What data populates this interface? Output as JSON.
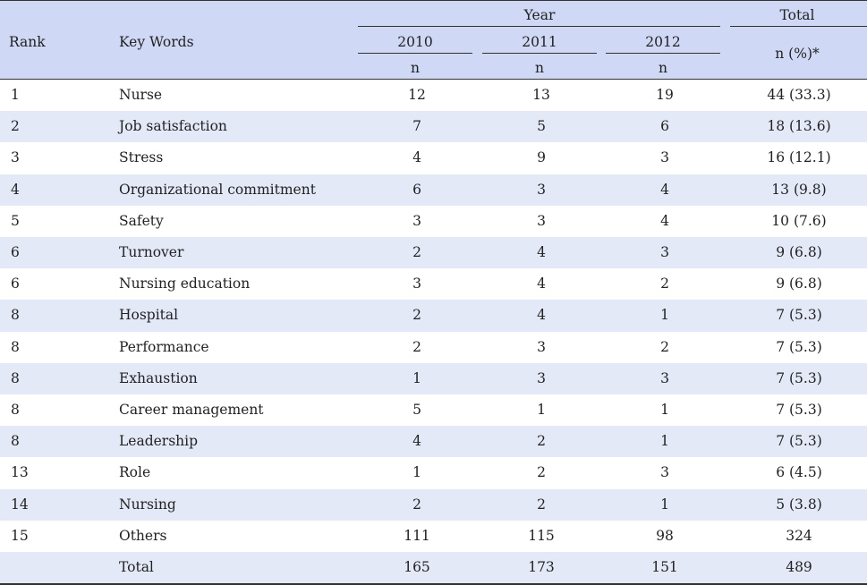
{
  "header": {
    "rank": "Rank",
    "keywords": "Key Words",
    "year": "Year",
    "total": "Total",
    "years": [
      "2010",
      "2011",
      "2012"
    ],
    "n": "n",
    "total_sub": "n (%)*"
  },
  "rows": [
    {
      "rank": "1",
      "kw": "Nurse",
      "y2010": "12",
      "y2011": "13",
      "y2012": "19",
      "total": "44 (33.3)"
    },
    {
      "rank": "2",
      "kw": "Job satisfaction",
      "y2010": "7",
      "y2011": "5",
      "y2012": "6",
      "total": "18 (13.6)"
    },
    {
      "rank": "3",
      "kw": "Stress",
      "y2010": "4",
      "y2011": "9",
      "y2012": "3",
      "total": "16 (12.1)"
    },
    {
      "rank": "4",
      "kw": "Organizational commitment",
      "y2010": "6",
      "y2011": "3",
      "y2012": "4",
      "total": "13 (9.8)"
    },
    {
      "rank": "5",
      "kw": "Safety",
      "y2010": "3",
      "y2011": "3",
      "y2012": "4",
      "total": "10 (7.6)"
    },
    {
      "rank": "6",
      "kw": "Turnover",
      "y2010": "2",
      "y2011": "4",
      "y2012": "3",
      "total": "9 (6.8)"
    },
    {
      "rank": "6",
      "kw": "Nursing education",
      "y2010": "3",
      "y2011": "4",
      "y2012": "2",
      "total": "9 (6.8)"
    },
    {
      "rank": "8",
      "kw": "Hospital",
      "y2010": "2",
      "y2011": "4",
      "y2012": "1",
      "total": "7 (5.3)"
    },
    {
      "rank": "8",
      "kw": "Performance",
      "y2010": "2",
      "y2011": "3",
      "y2012": "2",
      "total": "7 (5.3)"
    },
    {
      "rank": "8",
      "kw": "Exhaustion",
      "y2010": "1",
      "y2011": "3",
      "y2012": "3",
      "total": "7 (5.3)"
    },
    {
      "rank": "8",
      "kw": "Career management",
      "y2010": "5",
      "y2011": "1",
      "y2012": "1",
      "total": "7 (5.3)"
    },
    {
      "rank": "8",
      "kw": "Leadership",
      "y2010": "4",
      "y2011": "2",
      "y2012": "1",
      "total": "7 (5.3)"
    },
    {
      "rank": "13",
      "kw": "Role",
      "y2010": "1",
      "y2011": "2",
      "y2012": "3",
      "total": "6 (4.5)"
    },
    {
      "rank": "14",
      "kw": "Nursing",
      "y2010": "2",
      "y2011": "2",
      "y2012": "1",
      "total": "5 (3.8)"
    },
    {
      "rank": "15",
      "kw": "Others",
      "y2010": "111",
      "y2011": "115",
      "y2012": "98",
      "total": "324"
    },
    {
      "rank": "",
      "kw": "Total",
      "y2010": "165",
      "y2011": "173",
      "y2012": "151",
      "total": "489"
    }
  ],
  "colors": {
    "header_bg": "#cfd9f5",
    "alt_row_bg": "#e4e9f8"
  }
}
